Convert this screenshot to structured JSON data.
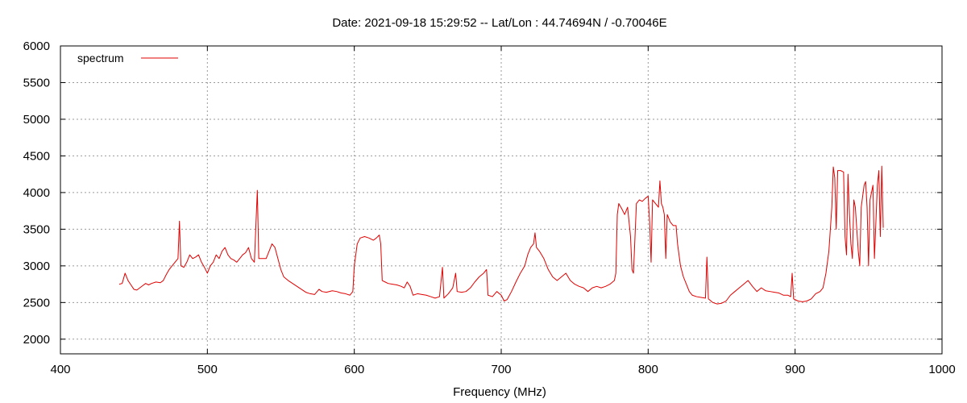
{
  "chart_data": {
    "type": "line",
    "title": "Date: 2021-09-18 15:29:52  --  Lat/Lon : 44.74694N / -0.70046E",
    "xlabel": "Frequency (MHz)",
    "ylabel": "",
    "xlim": [
      400,
      1000
    ],
    "ylim": [
      1800,
      6000
    ],
    "xticks": [
      400,
      500,
      600,
      700,
      800,
      900,
      1000
    ],
    "yticks": [
      2000,
      2500,
      3000,
      3500,
      4000,
      4500,
      5000,
      5500,
      6000
    ],
    "grid": true,
    "legend_position": "top-left",
    "series": [
      {
        "name": "spectrum",
        "color": "#e00000",
        "points": [
          [
            440,
            2750
          ],
          [
            442,
            2760
          ],
          [
            444,
            2900
          ],
          [
            446,
            2800
          ],
          [
            448,
            2740
          ],
          [
            450,
            2680
          ],
          [
            452,
            2670
          ],
          [
            454,
            2700
          ],
          [
            456,
            2730
          ],
          [
            458,
            2760
          ],
          [
            460,
            2740
          ],
          [
            462,
            2760
          ],
          [
            465,
            2780
          ],
          [
            468,
            2770
          ],
          [
            470,
            2800
          ],
          [
            472,
            2880
          ],
          [
            474,
            2950
          ],
          [
            476,
            3000
          ],
          [
            478,
            3050
          ],
          [
            480,
            3100
          ],
          [
            481,
            3610
          ],
          [
            482,
            3000
          ],
          [
            484,
            2980
          ],
          [
            486,
            3050
          ],
          [
            488,
            3150
          ],
          [
            490,
            3100
          ],
          [
            492,
            3120
          ],
          [
            494,
            3150
          ],
          [
            496,
            3050
          ],
          [
            498,
            2980
          ],
          [
            500,
            2900
          ],
          [
            502,
            3000
          ],
          [
            504,
            3050
          ],
          [
            506,
            3150
          ],
          [
            508,
            3100
          ],
          [
            510,
            3200
          ],
          [
            512,
            3250
          ],
          [
            514,
            3150
          ],
          [
            516,
            3100
          ],
          [
            518,
            3080
          ],
          [
            520,
            3050
          ],
          [
            522,
            3100
          ],
          [
            524,
            3150
          ],
          [
            526,
            3180
          ],
          [
            528,
            3250
          ],
          [
            530,
            3100
          ],
          [
            532,
            3050
          ],
          [
            534,
            4030
          ],
          [
            535,
            3100
          ],
          [
            537,
            3100
          ],
          [
            540,
            3100
          ],
          [
            542,
            3200
          ],
          [
            544,
            3300
          ],
          [
            546,
            3250
          ],
          [
            548,
            3100
          ],
          [
            550,
            2950
          ],
          [
            552,
            2850
          ],
          [
            555,
            2800
          ],
          [
            558,
            2760
          ],
          [
            561,
            2720
          ],
          [
            564,
            2680
          ],
          [
            567,
            2640
          ],
          [
            570,
            2620
          ],
          [
            573,
            2610
          ],
          [
            576,
            2680
          ],
          [
            578,
            2650
          ],
          [
            581,
            2640
          ],
          [
            585,
            2660
          ],
          [
            588,
            2650
          ],
          [
            591,
            2630
          ],
          [
            594,
            2620
          ],
          [
            597,
            2600
          ],
          [
            599,
            2650
          ],
          [
            600,
            3000
          ],
          [
            602,
            3300
          ],
          [
            604,
            3380
          ],
          [
            607,
            3400
          ],
          [
            610,
            3380
          ],
          [
            613,
            3350
          ],
          [
            615,
            3380
          ],
          [
            617,
            3420
          ],
          [
            618,
            3300
          ],
          [
            619,
            2800
          ],
          [
            621,
            2780
          ],
          [
            623,
            2760
          ],
          [
            626,
            2750
          ],
          [
            629,
            2740
          ],
          [
            632,
            2720
          ],
          [
            634,
            2700
          ],
          [
            636,
            2780
          ],
          [
            638,
            2720
          ],
          [
            640,
            2600
          ],
          [
            643,
            2620
          ],
          [
            646,
            2610
          ],
          [
            649,
            2600
          ],
          [
            652,
            2580
          ],
          [
            655,
            2560
          ],
          [
            658,
            2580
          ],
          [
            660,
            2980
          ],
          [
            661,
            2560
          ],
          [
            664,
            2620
          ],
          [
            667,
            2700
          ],
          [
            669,
            2900
          ],
          [
            670,
            2650
          ],
          [
            673,
            2640
          ],
          [
            676,
            2650
          ],
          [
            679,
            2700
          ],
          [
            682,
            2780
          ],
          [
            685,
            2850
          ],
          [
            688,
            2900
          ],
          [
            690,
            2950
          ],
          [
            691,
            2600
          ],
          [
            694,
            2580
          ],
          [
            697,
            2650
          ],
          [
            700,
            2600
          ],
          [
            702,
            2520
          ],
          [
            704,
            2540
          ],
          [
            707,
            2650
          ],
          [
            710,
            2780
          ],
          [
            713,
            2900
          ],
          [
            716,
            3000
          ],
          [
            718,
            3150
          ],
          [
            720,
            3250
          ],
          [
            722,
            3300
          ],
          [
            723,
            3450
          ],
          [
            724,
            3250
          ],
          [
            726,
            3200
          ],
          [
            729,
            3100
          ],
          [
            732,
            2950
          ],
          [
            735,
            2850
          ],
          [
            738,
            2800
          ],
          [
            741,
            2850
          ],
          [
            744,
            2900
          ],
          [
            747,
            2800
          ],
          [
            750,
            2750
          ],
          [
            753,
            2720
          ],
          [
            756,
            2700
          ],
          [
            759,
            2650
          ],
          [
            762,
            2700
          ],
          [
            765,
            2720
          ],
          [
            768,
            2700
          ],
          [
            771,
            2720
          ],
          [
            774,
            2750
          ],
          [
            777,
            2800
          ],
          [
            778,
            2900
          ],
          [
            779,
            3700
          ],
          [
            780,
            3850
          ],
          [
            782,
            3780
          ],
          [
            784,
            3700
          ],
          [
            786,
            3800
          ],
          [
            787,
            3600
          ],
          [
            788,
            3400
          ],
          [
            789,
            2950
          ],
          [
            790,
            2900
          ],
          [
            792,
            3850
          ],
          [
            794,
            3900
          ],
          [
            796,
            3880
          ],
          [
            798,
            3920
          ],
          [
            800,
            3950
          ],
          [
            801,
            3600
          ],
          [
            802,
            3050
          ],
          [
            803,
            3900
          ],
          [
            805,
            3850
          ],
          [
            807,
            3800
          ],
          [
            808,
            4160
          ],
          [
            809,
            3850
          ],
          [
            810,
            3800
          ],
          [
            811,
            3700
          ],
          [
            812,
            3100
          ],
          [
            813,
            3700
          ],
          [
            815,
            3600
          ],
          [
            817,
            3550
          ],
          [
            819,
            3550
          ],
          [
            820,
            3300
          ],
          [
            822,
            3000
          ],
          [
            824,
            2850
          ],
          [
            826,
            2750
          ],
          [
            828,
            2650
          ],
          [
            830,
            2600
          ],
          [
            833,
            2580
          ],
          [
            836,
            2570
          ],
          [
            839,
            2560
          ],
          [
            840,
            3120
          ],
          [
            841,
            2550
          ],
          [
            844,
            2500
          ],
          [
            847,
            2480
          ],
          [
            850,
            2490
          ],
          [
            853,
            2520
          ],
          [
            856,
            2600
          ],
          [
            859,
            2650
          ],
          [
            862,
            2700
          ],
          [
            865,
            2750
          ],
          [
            868,
            2800
          ],
          [
            871,
            2720
          ],
          [
            874,
            2650
          ],
          [
            877,
            2700
          ],
          [
            880,
            2660
          ],
          [
            883,
            2650
          ],
          [
            886,
            2640
          ],
          [
            889,
            2630
          ],
          [
            892,
            2600
          ],
          [
            895,
            2600
          ],
          [
            897,
            2580
          ],
          [
            898,
            2900
          ],
          [
            899,
            2550
          ],
          [
            902,
            2520
          ],
          [
            905,
            2510
          ],
          [
            908,
            2520
          ],
          [
            911,
            2550
          ],
          [
            914,
            2620
          ],
          [
            917,
            2650
          ],
          [
            919,
            2700
          ],
          [
            921,
            2900
          ],
          [
            923,
            3200
          ],
          [
            925,
            3800
          ],
          [
            926,
            4350
          ],
          [
            927,
            4200
          ],
          [
            928,
            3500
          ],
          [
            929,
            4300
          ],
          [
            931,
            4300
          ],
          [
            933,
            4280
          ],
          [
            934,
            3400
          ],
          [
            935,
            3150
          ],
          [
            936,
            4250
          ],
          [
            937,
            3700
          ],
          [
            938,
            3300
          ],
          [
            939,
            3100
          ],
          [
            940,
            3900
          ],
          [
            941,
            3800
          ],
          [
            942,
            3500
          ],
          [
            943,
            3200
          ],
          [
            944,
            3000
          ],
          [
            945,
            3800
          ],
          [
            946,
            3950
          ],
          [
            947,
            4100
          ],
          [
            948,
            4150
          ],
          [
            949,
            3800
          ],
          [
            950,
            3000
          ],
          [
            951,
            3900
          ],
          [
            952,
            4000
          ],
          [
            953,
            4100
          ],
          [
            954,
            3100
          ],
          [
            955,
            3600
          ],
          [
            956,
            4100
          ],
          [
            957,
            4300
          ],
          [
            958,
            3400
          ],
          [
            959,
            4360
          ],
          [
            960,
            3520
          ]
        ]
      }
    ]
  }
}
